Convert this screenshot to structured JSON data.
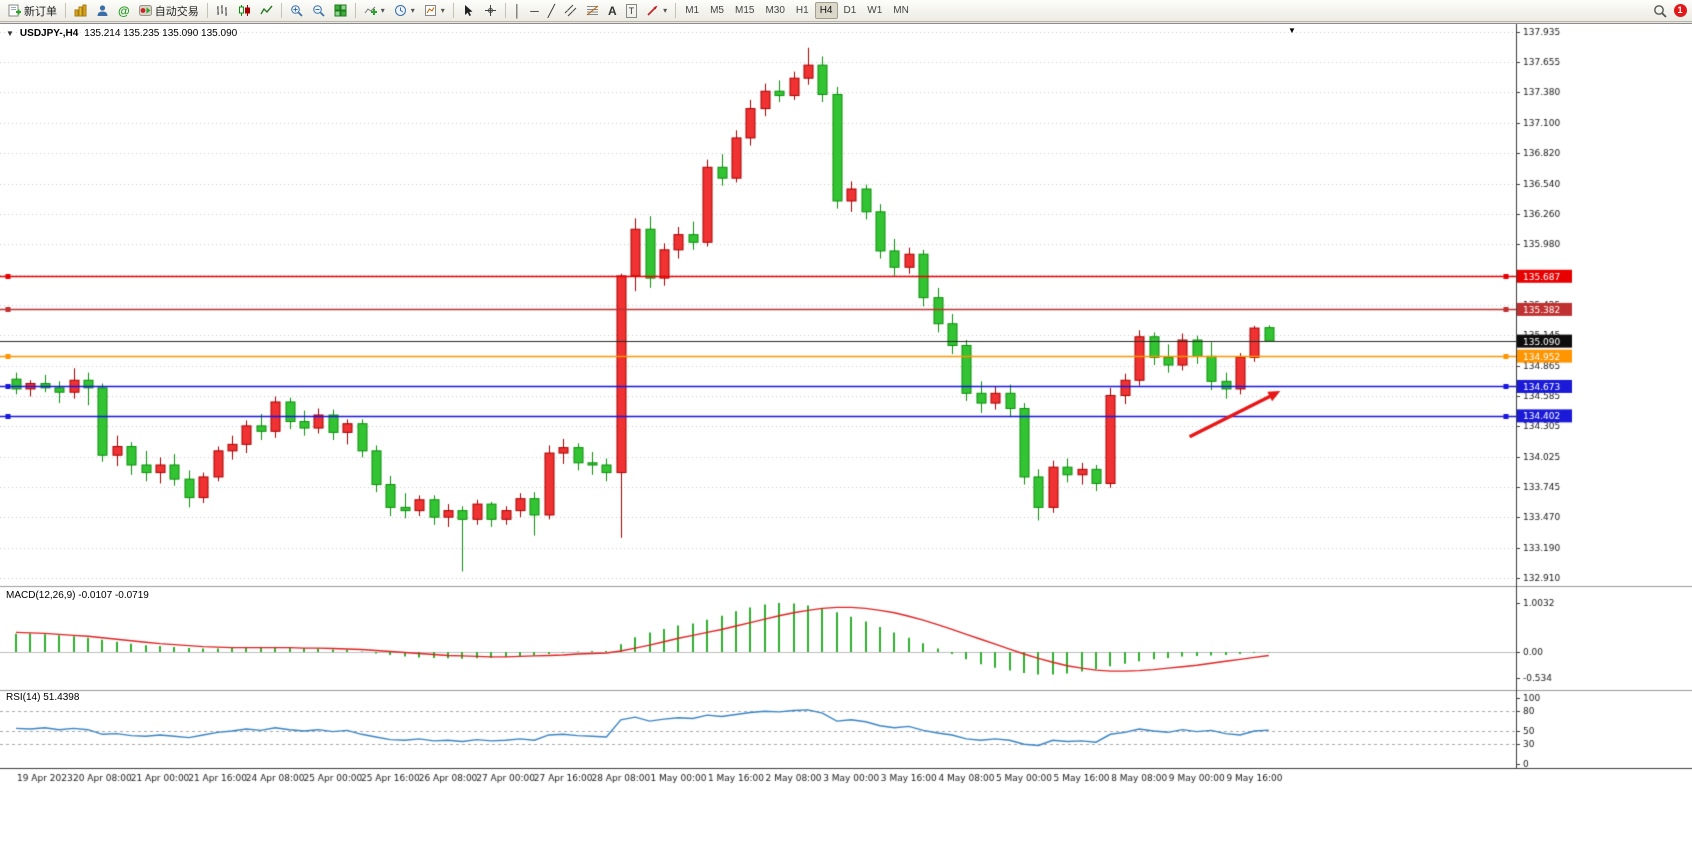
{
  "toolbar": {
    "new_order": "新订单",
    "auto_trading": "自动交易",
    "timeframes": [
      "M1",
      "M5",
      "M15",
      "M30",
      "H1",
      "H4",
      "D1",
      "W1",
      "MN"
    ],
    "active_timeframe": "H4",
    "notification_count": "1"
  },
  "icons": {
    "one_click_toggle": "▼",
    "chart_shift": "▼",
    "dropdown": "▾",
    "community": "@",
    "vline_tool": "│",
    "hline_tool": "─",
    "trendline_tool": "╱",
    "crosshair_tool": "+",
    "text_tool": "A",
    "label_tool": "T"
  },
  "chart_header": {
    "symbol_period": "USDJPY-,H4",
    "ohlc": "135.214 135.235 135.090 135.090"
  },
  "indicator_labels": {
    "macd": "MACD(12,26,9) -0.0107 -0.0719",
    "rsi": "RSI(14) 51.4398"
  },
  "chart_data": {
    "type": "candlestick",
    "symbol": "USDJPY-",
    "timeframe": "H4",
    "ylim": [
      132.91,
      137.935
    ],
    "price_axis": [
      "137.935",
      "137.655",
      "137.380",
      "137.100",
      "136.820",
      "136.540",
      "136.260",
      "135.980",
      "135.700",
      "135.425",
      "135.145",
      "134.865",
      "134.585",
      "134.305",
      "134.025",
      "133.745",
      "133.470",
      "133.190",
      "132.910"
    ],
    "hlines": [
      {
        "price": 135.687,
        "label": "135.687",
        "color": "#e80000",
        "badge": "#e80000",
        "width": 1.4,
        "handles": true
      },
      {
        "price": 135.382,
        "label": "135.382",
        "color": "#c03232",
        "badge": "#c03232",
        "width": 1.6,
        "handles": true
      },
      {
        "price": 135.09,
        "label": "135.090",
        "color": "#2a2a2a",
        "badge": "#0d0d0d",
        "width": 1,
        "handles": false
      },
      {
        "price": 134.952,
        "label": "134.952",
        "color": "#ff9500",
        "badge": "#ff9500",
        "width": 1.6,
        "handles": true
      },
      {
        "price": 134.673,
        "label": "134.673",
        "color": "#1616e0",
        "badge": "#1a1ad8",
        "width": 1.6,
        "handles": true
      },
      {
        "price": 134.402,
        "label": "134.402",
        "color": "#1616e0",
        "badge": "#1a1ad8",
        "width": 1.6,
        "handles": true
      }
    ],
    "arrow": {
      "from_bar": 81.5,
      "from_price": 134.21,
      "to_bar": 87.8,
      "to_price": 134.63,
      "color": "#e81616"
    },
    "time_labels": [
      "19 Apr 2023",
      "20 Apr 08:00",
      "21 Apr 00:00",
      "21 Apr 16:00",
      "24 Apr 08:00",
      "25 Apr 00:00",
      "25 Apr 16:00",
      "26 Apr 08:00",
      "27 Apr 00:00",
      "27 Apr 16:00",
      "28 Apr 08:00",
      "1 May 00:00",
      "1 May 16:00",
      "2 May 08:00",
      "3 May 00:00",
      "3 May 16:00",
      "4 May 08:00",
      "5 May 00:00",
      "5 May 16:00",
      "8 May 08:00",
      "9 May 00:00",
      "9 May 16:00"
    ],
    "label_start_bar": 2,
    "label_step": 4,
    "candles": [
      [
        134.74,
        134.8,
        134.6,
        134.65
      ],
      [
        134.65,
        134.73,
        134.58,
        134.7
      ],
      [
        134.7,
        134.78,
        134.62,
        134.66
      ],
      [
        134.66,
        134.72,
        134.52,
        134.62
      ],
      [
        134.62,
        134.84,
        134.56,
        134.73
      ],
      [
        134.73,
        134.8,
        134.5,
        134.66
      ],
      [
        134.66,
        134.7,
        133.98,
        134.04
      ],
      [
        134.04,
        134.22,
        133.94,
        134.12
      ],
      [
        134.12,
        134.16,
        133.86,
        133.95
      ],
      [
        133.95,
        134.08,
        133.8,
        133.88
      ],
      [
        133.88,
        134.02,
        133.78,
        133.95
      ],
      [
        133.95,
        134.05,
        133.76,
        133.82
      ],
      [
        133.82,
        133.9,
        133.56,
        133.65
      ],
      [
        133.65,
        133.88,
        133.6,
        133.84
      ],
      [
        133.84,
        134.12,
        133.8,
        134.08
      ],
      [
        134.08,
        134.22,
        134.0,
        134.14
      ],
      [
        134.14,
        134.36,
        134.06,
        134.31
      ],
      [
        134.31,
        134.42,
        134.18,
        134.26
      ],
      [
        134.26,
        134.58,
        134.2,
        134.53
      ],
      [
        134.53,
        134.57,
        134.28,
        134.35
      ],
      [
        134.35,
        134.45,
        134.22,
        134.29
      ],
      [
        134.29,
        134.47,
        134.24,
        134.41
      ],
      [
        134.41,
        134.46,
        134.18,
        134.25
      ],
      [
        134.25,
        134.37,
        134.14,
        134.33
      ],
      [
        134.33,
        134.37,
        134.02,
        134.08
      ],
      [
        134.08,
        134.13,
        133.7,
        133.77
      ],
      [
        133.77,
        133.85,
        133.48,
        133.56
      ],
      [
        133.56,
        133.69,
        133.46,
        133.53
      ],
      [
        133.53,
        133.67,
        133.48,
        133.63
      ],
      [
        133.63,
        133.67,
        133.4,
        133.47
      ],
      [
        133.47,
        133.59,
        133.38,
        133.53
      ],
      [
        133.53,
        133.57,
        132.97,
        133.45
      ],
      [
        133.45,
        133.63,
        133.4,
        133.59
      ],
      [
        133.59,
        133.61,
        133.38,
        133.45
      ],
      [
        133.45,
        133.57,
        133.4,
        133.53
      ],
      [
        133.53,
        133.69,
        133.47,
        133.64
      ],
      [
        133.64,
        133.7,
        133.3,
        133.49
      ],
      [
        133.49,
        134.13,
        133.45,
        134.06
      ],
      [
        134.06,
        134.19,
        133.96,
        134.11
      ],
      [
        134.11,
        134.15,
        133.9,
        133.97
      ],
      [
        133.97,
        134.07,
        133.86,
        133.95
      ],
      [
        133.95,
        134.01,
        133.8,
        133.88
      ],
      [
        133.88,
        135.71,
        133.28,
        135.69
      ],
      [
        135.69,
        136.22,
        135.55,
        136.12
      ],
      [
        136.12,
        136.24,
        135.58,
        135.67
      ],
      [
        135.67,
        135.99,
        135.6,
        135.93
      ],
      [
        135.93,
        136.14,
        135.85,
        136.07
      ],
      [
        136.07,
        136.19,
        135.93,
        136.0
      ],
      [
        136.0,
        136.76,
        135.96,
        136.69
      ],
      [
        136.69,
        136.81,
        136.52,
        136.59
      ],
      [
        136.59,
        137.03,
        136.55,
        136.96
      ],
      [
        136.96,
        137.31,
        136.89,
        137.23
      ],
      [
        137.23,
        137.46,
        137.16,
        137.39
      ],
      [
        137.39,
        137.49,
        137.29,
        137.35
      ],
      [
        137.35,
        137.57,
        137.31,
        137.51
      ],
      [
        137.51,
        137.79,
        137.45,
        137.63
      ],
      [
        137.63,
        137.71,
        137.29,
        137.36
      ],
      [
        137.36,
        137.43,
        136.31,
        136.38
      ],
      [
        136.38,
        136.56,
        136.28,
        136.49
      ],
      [
        136.49,
        136.53,
        136.21,
        136.28
      ],
      [
        136.28,
        136.35,
        135.85,
        135.92
      ],
      [
        135.92,
        136.03,
        135.69,
        135.77
      ],
      [
        135.77,
        135.95,
        135.71,
        135.89
      ],
      [
        135.89,
        135.93,
        135.41,
        135.49
      ],
      [
        135.49,
        135.58,
        135.17,
        135.25
      ],
      [
        135.25,
        135.34,
        134.97,
        135.05
      ],
      [
        135.05,
        135.1,
        134.54,
        134.61
      ],
      [
        134.61,
        134.72,
        134.43,
        134.52
      ],
      [
        134.52,
        134.67,
        134.46,
        134.61
      ],
      [
        134.61,
        134.69,
        134.39,
        134.47
      ],
      [
        134.47,
        134.52,
        133.77,
        133.84
      ],
      [
        133.84,
        133.91,
        133.44,
        133.56
      ],
      [
        133.56,
        133.99,
        133.51,
        133.93
      ],
      [
        133.93,
        134.01,
        133.79,
        133.86
      ],
      [
        133.86,
        133.97,
        133.77,
        133.91
      ],
      [
        133.91,
        133.95,
        133.71,
        133.78
      ],
      [
        133.78,
        134.66,
        133.74,
        134.59
      ],
      [
        134.59,
        134.79,
        134.51,
        134.73
      ],
      [
        134.73,
        135.19,
        134.68,
        135.13
      ],
      [
        135.13,
        135.17,
        134.87,
        134.94
      ],
      [
        134.94,
        135.06,
        134.8,
        134.87
      ],
      [
        134.87,
        135.16,
        134.82,
        135.1
      ],
      [
        135.1,
        135.14,
        134.88,
        134.95
      ],
      [
        134.95,
        135.08,
        134.64,
        134.72
      ],
      [
        134.72,
        134.8,
        134.56,
        134.65
      ],
      [
        134.65,
        134.98,
        134.6,
        134.94
      ],
      [
        134.94,
        135.23,
        134.9,
        135.21
      ],
      [
        135.214,
        135.235,
        135.09,
        135.09
      ]
    ],
    "macd": {
      "histogram": [
        0.37,
        0.38,
        0.36,
        0.34,
        0.32,
        0.29,
        0.25,
        0.21,
        0.17,
        0.14,
        0.12,
        0.1,
        0.08,
        0.07,
        0.07,
        0.08,
        0.09,
        0.09,
        0.1,
        0.09,
        0.08,
        0.07,
        0.05,
        0.04,
        0.01,
        -0.03,
        -0.06,
        -0.09,
        -0.11,
        -0.12,
        -0.13,
        -0.14,
        -0.13,
        -0.12,
        -0.1,
        -0.08,
        -0.07,
        -0.04,
        -0.01,
        0.01,
        0.02,
        0.02,
        0.16,
        0.3,
        0.4,
        0.47,
        0.54,
        0.58,
        0.66,
        0.74,
        0.83,
        0.91,
        0.97,
        1.0,
        0.99,
        0.95,
        0.89,
        0.81,
        0.72,
        0.62,
        0.51,
        0.4,
        0.29,
        0.18,
        0.07,
        -0.04,
        -0.15,
        -0.25,
        -0.32,
        -0.38,
        -0.43,
        -0.46,
        -0.46,
        -0.44,
        -0.4,
        -0.35,
        -0.29,
        -0.24,
        -0.19,
        -0.15,
        -0.12,
        -0.09,
        -0.08,
        -0.07,
        -0.06,
        -0.04,
        -0.02,
        -0.0107
      ],
      "signal": [
        0.4,
        0.39,
        0.38,
        0.36,
        0.34,
        0.32,
        0.29,
        0.26,
        0.23,
        0.2,
        0.17,
        0.15,
        0.13,
        0.11,
        0.1,
        0.09,
        0.09,
        0.09,
        0.09,
        0.09,
        0.08,
        0.08,
        0.07,
        0.06,
        0.05,
        0.03,
        0.01,
        -0.01,
        -0.03,
        -0.05,
        -0.07,
        -0.08,
        -0.09,
        -0.1,
        -0.1,
        -0.09,
        -0.08,
        -0.07,
        -0.06,
        -0.04,
        -0.03,
        -0.02,
        0.02,
        0.08,
        0.14,
        0.21,
        0.28,
        0.34,
        0.4,
        0.46,
        0.53,
        0.6,
        0.67,
        0.74,
        0.8,
        0.85,
        0.89,
        0.91,
        0.91,
        0.89,
        0.85,
        0.8,
        0.73,
        0.65,
        0.56,
        0.46,
        0.36,
        0.26,
        0.16,
        0.06,
        -0.04,
        -0.13,
        -0.21,
        -0.28,
        -0.33,
        -0.37,
        -0.39,
        -0.39,
        -0.38,
        -0.36,
        -0.33,
        -0.3,
        -0.27,
        -0.23,
        -0.19,
        -0.15,
        -0.11,
        -0.0719
      ],
      "scale_labels": [
        [
          "1.0032",
          1.0032
        ],
        [
          "0.00",
          0
        ],
        [
          "-0.534",
          -0.534
        ]
      ]
    },
    "rsi": {
      "values": [
        54,
        53,
        55,
        52,
        54,
        52,
        45,
        46,
        43,
        42,
        44,
        42,
        40,
        44,
        48,
        50,
        53,
        51,
        55,
        52,
        50,
        52,
        49,
        51,
        45,
        41,
        37,
        36,
        38,
        35,
        36,
        34,
        37,
        35,
        36,
        38,
        36,
        44,
        45,
        43,
        42,
        41,
        67,
        71,
        65,
        68,
        70,
        69,
        74,
        72,
        75,
        78,
        80,
        79,
        81,
        82,
        77,
        65,
        67,
        64,
        58,
        55,
        57,
        51,
        47,
        44,
        38,
        36,
        38,
        36,
        30,
        28,
        36,
        34,
        35,
        33,
        45,
        48,
        53,
        50,
        48,
        52,
        49,
        51,
        46,
        44,
        50,
        51.4
      ],
      "levels": [
        80,
        50,
        30
      ],
      "scale_labels": [
        [
          "100",
          100
        ],
        [
          "80",
          80
        ],
        [
          "50",
          50
        ],
        [
          "30",
          30
        ],
        [
          "0",
          0
        ]
      ]
    },
    "colors": {
      "bull_fill": "#f03232",
      "bull_edge": "#a80000",
      "bear_fill": "#33c433",
      "bear_edge": "#0b8f0b",
      "macd_hist": "#2fae2f",
      "macd_signal": "#e02222",
      "rsi_line": "#3a84c4",
      "grid": "#c9c9c9",
      "axis_border": "#3c3c3c",
      "text": "#1a1a1a"
    }
  }
}
